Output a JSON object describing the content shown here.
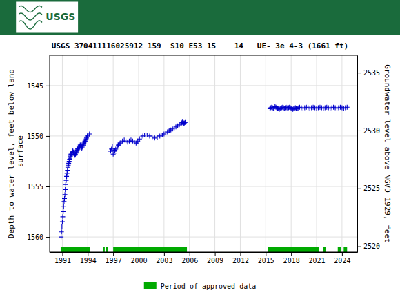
{
  "chart_data": {
    "type": "scatter",
    "title": "USGS 370411116025912 159  S10 E53 15    14   UE- 3e 4-3 (1661 ft)",
    "ylabel": "Depth to water level, feet below land\n surface",
    "y2label": "Groundwater level above NGVD 1929, feet",
    "annotations": [
      {
        "text": "USGS",
        "color": "#1a6b3c"
      }
    ],
    "xlim": [
      1989.5,
      2025.8
    ],
    "xticks": [
      1991,
      1994,
      1997,
      2000,
      2003,
      2006,
      2009,
      2012,
      2015,
      2018,
      2021,
      2024
    ],
    "ylim": [
      1561.5,
      1542.0
    ],
    "yticks": [
      1545,
      1550,
      1555,
      1560
    ],
    "y2lim": [
      2519.5,
      2536.5
    ],
    "y2ticks": [
      2520,
      2525,
      2530,
      2535
    ],
    "grid": true,
    "legend": "bottom",
    "series": [
      {
        "color": "#0000cc",
        "marker": "plus",
        "x": [
          1990.85,
          1990.9,
          1990.95,
          1991.0,
          1991.05,
          1991.1,
          1991.15,
          1991.2,
          1991.25,
          1991.3,
          1991.35,
          1991.4,
          1991.45,
          1991.5,
          1991.55,
          1991.6,
          1991.65,
          1991.7,
          1991.75,
          1991.8,
          1991.85,
          1991.9,
          1991.95,
          1992.0,
          1992.05,
          1992.1,
          1992.15,
          1992.2,
          1992.25,
          1992.3,
          1992.35,
          1992.4,
          1992.45,
          1992.5,
          1992.55,
          1992.6,
          1992.65,
          1992.7,
          1992.75,
          1992.8,
          1992.85,
          1992.9,
          1992.95,
          1993.0,
          1993.05,
          1993.1,
          1993.15,
          1993.2,
          1993.25,
          1993.3,
          1993.35,
          1993.4,
          1993.45,
          1993.5,
          1993.55,
          1993.6,
          1993.65,
          1993.7,
          1993.75,
          1993.8,
          1993.85,
          1993.9,
          1993.95,
          1994.0,
          1994.2,
          1996.7,
          1996.8,
          1996.9,
          1997.0,
          1997.1,
          1997.15,
          1997.2,
          1997.3,
          1997.5,
          1997.6,
          1997.7,
          1997.8,
          1997.9,
          1998.1,
          1998.3,
          1998.5,
          1998.7,
          1998.9,
          1999.1,
          1999.3,
          1999.5,
          1999.7,
          1999.9,
          2000.1,
          2000.3,
          2000.5,
          2000.7,
          2001.0,
          2001.3,
          2001.6,
          2001.9,
          2002.2,
          2002.5,
          2002.8,
          2003.0,
          2003.2,
          2003.4,
          2003.6,
          2003.8,
          2004.0,
          2004.2,
          2004.4,
          2004.6,
          2004.8,
          2005.0,
          2005.1,
          2005.15,
          2005.2,
          2005.25,
          2005.3,
          2005.35,
          2005.4,
          2005.5,
          2015.5,
          2015.6,
          2015.7,
          2015.8,
          2015.9,
          2016.0,
          2016.1,
          2016.2,
          2016.3,
          2016.4,
          2016.5,
          2016.6,
          2016.7,
          2016.8,
          2016.9,
          2017.0,
          2017.1,
          2017.2,
          2017.3,
          2017.4,
          2017.5,
          2017.6,
          2017.7,
          2017.8,
          2017.9,
          2018.0,
          2018.1,
          2018.2,
          2018.3,
          2018.4,
          2018.5,
          2018.6,
          2018.7,
          2018.8,
          2018.9,
          2019.0,
          2019.2,
          2019.4,
          2019.6,
          2019.8,
          2020.0,
          2020.2,
          2020.4,
          2020.6,
          2020.8,
          2021.0,
          2021.2,
          2021.4,
          2021.6,
          2021.8,
          2022.0,
          2022.2,
          2022.4,
          2022.6,
          2022.8,
          2023.0,
          2023.2,
          2023.4,
          2023.6,
          2023.8,
          2024.0,
          2024.2,
          2024.4,
          2024.6
        ],
        "values": [
          1560.0,
          1559.5,
          1559.0,
          1558.5,
          1558.0,
          1557.5,
          1557.0,
          1556.5,
          1556.2,
          1555.8,
          1555.3,
          1554.8,
          1554.4,
          1554.0,
          1553.7,
          1553.4,
          1553.1,
          1552.9,
          1552.7,
          1552.5,
          1552.3,
          1552.2,
          1552.0,
          1551.8,
          1551.8,
          1551.7,
          1551.6,
          1551.5,
          1551.5,
          1551.6,
          1551.7,
          1551.8,
          1551.9,
          1551.9,
          1551.8,
          1551.7,
          1551.6,
          1551.5,
          1551.4,
          1551.3,
          1551.3,
          1551.2,
          1551.1,
          1551.0,
          1551.0,
          1550.9,
          1550.9,
          1551.0,
          1551.1,
          1551.2,
          1551.1,
          1551.0,
          1550.9,
          1550.8,
          1550.7,
          1550.6,
          1550.5,
          1550.5,
          1550.4,
          1550.3,
          1550.2,
          1550.1,
          1550.0,
          1549.9,
          1549.8,
          1551.5,
          1551.3,
          1551.0,
          1551.8,
          1551.7,
          1551.5,
          1551.4,
          1551.3,
          1551.0,
          1550.9,
          1550.8,
          1550.7,
          1550.6,
          1550.5,
          1550.4,
          1550.5,
          1550.6,
          1550.5,
          1550.4,
          1550.5,
          1550.6,
          1550.7,
          1550.5,
          1550.3,
          1550.1,
          1550.0,
          1549.9,
          1549.9,
          1550.0,
          1550.1,
          1550.2,
          1550.1,
          1550.0,
          1549.9,
          1549.8,
          1549.7,
          1549.6,
          1549.5,
          1549.4,
          1549.3,
          1549.2,
          1549.1,
          1549.0,
          1548.9,
          1548.8,
          1548.7,
          1548.65,
          1548.6,
          1548.65,
          1548.7,
          1548.75,
          1548.7,
          1548.65,
          1547.3,
          1547.2,
          1547.15,
          1547.2,
          1547.25,
          1547.2,
          1547.1,
          1547.15,
          1547.2,
          1547.25,
          1547.3,
          1547.35,
          1547.3,
          1547.25,
          1547.2,
          1547.15,
          1547.2,
          1547.25,
          1547.2,
          1547.15,
          1547.2,
          1547.25,
          1547.2,
          1547.15,
          1547.2,
          1547.25,
          1547.3,
          1547.35,
          1547.3,
          1547.25,
          1547.2,
          1547.25,
          1547.3,
          1547.25,
          1547.2,
          1547.15,
          1547.2,
          1547.25,
          1547.2,
          1547.15,
          1547.2,
          1547.25,
          1547.2,
          1547.15,
          1547.2,
          1547.25,
          1547.2,
          1547.15,
          1547.2,
          1547.25,
          1547.2,
          1547.15,
          1547.2,
          1547.25,
          1547.2,
          1547.15,
          1547.2,
          1547.25,
          1547.2,
          1547.15,
          1547.2,
          1547.25,
          1547.2,
          1547.15
        ]
      }
    ],
    "approved_periods": {
      "name": "Period of approved data",
      "color": "#00aa00",
      "start": [
        1990.8,
        1995.85,
        1996.15,
        1997.0,
        2015.3,
        2021.75,
        2023.5,
        2024.2
      ],
      "end": [
        1994.3,
        1996.0,
        1996.35,
        2005.7,
        2021.3,
        2022.1,
        2023.9,
        2024.6
      ]
    }
  }
}
